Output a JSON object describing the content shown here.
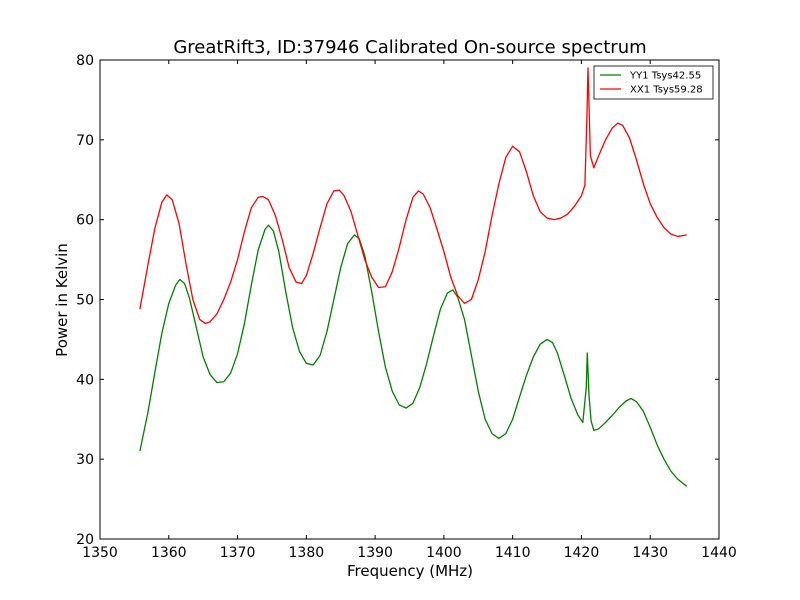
{
  "chart_data": {
    "type": "line",
    "title": "GreatRift3, ID:37946 Calibrated On-source spectrum",
    "xlabel": "Frequency (MHz)",
    "ylabel": "Power in Kelvin",
    "xlim": [
      1350,
      1440
    ],
    "ylim": [
      20,
      80
    ],
    "xticks": [
      1350,
      1360,
      1370,
      1380,
      1390,
      1400,
      1410,
      1420,
      1430,
      1440
    ],
    "yticks": [
      20,
      30,
      40,
      50,
      60,
      70,
      80
    ],
    "legend_position": "top-right",
    "grid": false,
    "series": [
      {
        "name": "YY1 Tsys42.55",
        "color": "#008000",
        "points": [
          [
            1355.8,
            31.0
          ],
          [
            1357.0,
            36.0
          ],
          [
            1358.0,
            41.0
          ],
          [
            1359.0,
            45.8
          ],
          [
            1360.0,
            49.5
          ],
          [
            1361.0,
            51.8
          ],
          [
            1361.6,
            52.5
          ],
          [
            1362.3,
            52.0
          ],
          [
            1363.0,
            50.2
          ],
          [
            1364.0,
            46.5
          ],
          [
            1365.0,
            42.8
          ],
          [
            1366.0,
            40.6
          ],
          [
            1367.0,
            39.6
          ],
          [
            1368.0,
            39.7
          ],
          [
            1369.0,
            40.8
          ],
          [
            1370.0,
            43.2
          ],
          [
            1371.0,
            47.0
          ],
          [
            1372.0,
            51.8
          ],
          [
            1373.0,
            56.2
          ],
          [
            1374.0,
            58.8
          ],
          [
            1374.5,
            59.3
          ],
          [
            1375.2,
            58.6
          ],
          [
            1376.0,
            56.0
          ],
          [
            1377.0,
            51.0
          ],
          [
            1378.0,
            46.5
          ],
          [
            1379.0,
            43.5
          ],
          [
            1380.0,
            42.0
          ],
          [
            1381.0,
            41.8
          ],
          [
            1382.0,
            43.0
          ],
          [
            1383.0,
            46.0
          ],
          [
            1384.0,
            50.0
          ],
          [
            1385.0,
            54.0
          ],
          [
            1386.0,
            57.0
          ],
          [
            1387.0,
            58.1
          ],
          [
            1387.7,
            57.6
          ],
          [
            1388.5,
            55.5
          ],
          [
            1389.5,
            51.0
          ],
          [
            1390.5,
            46.0
          ],
          [
            1391.5,
            41.5
          ],
          [
            1392.5,
            38.5
          ],
          [
            1393.5,
            36.8
          ],
          [
            1394.5,
            36.4
          ],
          [
            1395.5,
            37.0
          ],
          [
            1396.5,
            39.0
          ],
          [
            1397.5,
            42.0
          ],
          [
            1398.5,
            45.5
          ],
          [
            1399.5,
            48.8
          ],
          [
            1400.5,
            50.8
          ],
          [
            1401.3,
            51.2
          ],
          [
            1402.0,
            50.3
          ],
          [
            1403.0,
            47.5
          ],
          [
            1404.0,
            43.0
          ],
          [
            1405.0,
            38.5
          ],
          [
            1406.0,
            35.0
          ],
          [
            1407.0,
            33.2
          ],
          [
            1408.0,
            32.6
          ],
          [
            1409.0,
            33.2
          ],
          [
            1410.0,
            35.0
          ],
          [
            1411.0,
            37.8
          ],
          [
            1412.0,
            40.5
          ],
          [
            1413.0,
            42.8
          ],
          [
            1414.0,
            44.4
          ],
          [
            1415.0,
            45.0
          ],
          [
            1415.8,
            44.6
          ],
          [
            1416.5,
            43.3
          ],
          [
            1417.5,
            40.5
          ],
          [
            1418.5,
            37.6
          ],
          [
            1419.5,
            35.5
          ],
          [
            1420.2,
            34.6
          ],
          [
            1420.7,
            39.0
          ],
          [
            1420.85,
            43.3
          ],
          [
            1421.1,
            38.0
          ],
          [
            1421.4,
            34.8
          ],
          [
            1421.8,
            33.6
          ],
          [
            1422.5,
            33.8
          ],
          [
            1423.5,
            34.6
          ],
          [
            1424.5,
            35.5
          ],
          [
            1425.5,
            36.5
          ],
          [
            1426.5,
            37.3
          ],
          [
            1427.2,
            37.6
          ],
          [
            1428.0,
            37.2
          ],
          [
            1429.0,
            36.0
          ],
          [
            1430.0,
            34.0
          ],
          [
            1431.0,
            31.8
          ],
          [
            1432.0,
            30.0
          ],
          [
            1433.0,
            28.5
          ],
          [
            1434.0,
            27.5
          ],
          [
            1435.3,
            26.6
          ]
        ]
      },
      {
        "name": "XX1 Tsys59.28",
        "color": "#ff0000",
        "points": [
          [
            1355.8,
            48.8
          ],
          [
            1357.0,
            54.5
          ],
          [
            1358.0,
            59.0
          ],
          [
            1359.0,
            62.2
          ],
          [
            1359.7,
            63.1
          ],
          [
            1360.5,
            62.5
          ],
          [
            1361.5,
            59.5
          ],
          [
            1362.5,
            54.5
          ],
          [
            1363.5,
            50.0
          ],
          [
            1364.5,
            47.5
          ],
          [
            1365.3,
            47.0
          ],
          [
            1366.0,
            47.2
          ],
          [
            1367.0,
            48.2
          ],
          [
            1368.0,
            50.0
          ],
          [
            1369.0,
            52.2
          ],
          [
            1370.0,
            55.0
          ],
          [
            1371.0,
            58.5
          ],
          [
            1372.0,
            61.5
          ],
          [
            1373.0,
            62.8
          ],
          [
            1373.7,
            62.9
          ],
          [
            1374.5,
            62.5
          ],
          [
            1375.5,
            60.5
          ],
          [
            1376.5,
            57.5
          ],
          [
            1377.5,
            54.0
          ],
          [
            1378.5,
            52.2
          ],
          [
            1379.3,
            52.0
          ],
          [
            1380.0,
            53.0
          ],
          [
            1381.0,
            55.8
          ],
          [
            1382.0,
            59.0
          ],
          [
            1383.0,
            62.0
          ],
          [
            1384.0,
            63.6
          ],
          [
            1384.8,
            63.7
          ],
          [
            1385.5,
            63.0
          ],
          [
            1386.5,
            61.0
          ],
          [
            1387.5,
            58.0
          ],
          [
            1388.5,
            55.0
          ],
          [
            1389.5,
            52.8
          ],
          [
            1390.5,
            51.5
          ],
          [
            1391.5,
            51.6
          ],
          [
            1392.5,
            53.5
          ],
          [
            1393.5,
            56.5
          ],
          [
            1394.5,
            60.0
          ],
          [
            1395.5,
            62.8
          ],
          [
            1396.3,
            63.6
          ],
          [
            1397.0,
            63.2
          ],
          [
            1398.0,
            61.5
          ],
          [
            1399.0,
            58.8
          ],
          [
            1400.0,
            56.0
          ],
          [
            1401.0,
            52.8
          ],
          [
            1402.0,
            50.5
          ],
          [
            1403.0,
            49.5
          ],
          [
            1404.0,
            50.0
          ],
          [
            1405.0,
            52.5
          ],
          [
            1406.0,
            56.0
          ],
          [
            1407.0,
            60.5
          ],
          [
            1408.0,
            64.5
          ],
          [
            1409.0,
            67.8
          ],
          [
            1410.0,
            69.2
          ],
          [
            1411.0,
            68.5
          ],
          [
            1412.0,
            66.0
          ],
          [
            1413.0,
            63.0
          ],
          [
            1414.0,
            61.0
          ],
          [
            1415.0,
            60.2
          ],
          [
            1416.0,
            60.0
          ],
          [
            1417.0,
            60.2
          ],
          [
            1418.0,
            60.7
          ],
          [
            1419.0,
            61.7
          ],
          [
            1420.0,
            63.0
          ],
          [
            1420.5,
            64.3
          ],
          [
            1420.8,
            73.0
          ],
          [
            1420.95,
            79.0
          ],
          [
            1421.3,
            68.0
          ],
          [
            1421.8,
            66.5
          ],
          [
            1422.5,
            68.0
          ],
          [
            1423.5,
            70.0
          ],
          [
            1424.5,
            71.5
          ],
          [
            1425.3,
            72.1
          ],
          [
            1426.0,
            71.8
          ],
          [
            1427.0,
            70.2
          ],
          [
            1428.0,
            67.5
          ],
          [
            1429.0,
            64.5
          ],
          [
            1430.0,
            62.0
          ],
          [
            1431.0,
            60.3
          ],
          [
            1432.0,
            59.0
          ],
          [
            1433.0,
            58.2
          ],
          [
            1434.0,
            57.9
          ],
          [
            1435.3,
            58.1
          ]
        ]
      }
    ]
  }
}
